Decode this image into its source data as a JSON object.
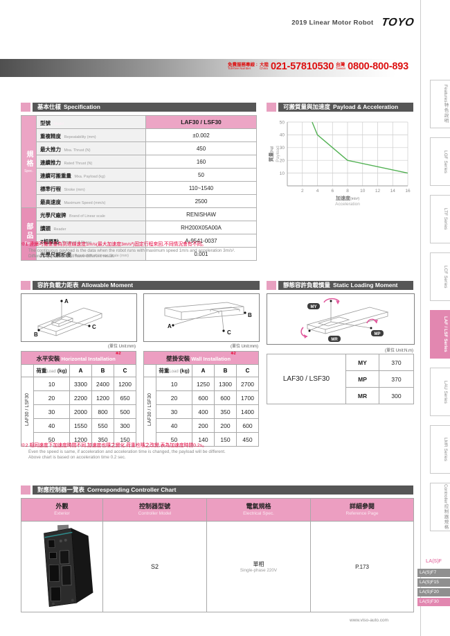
{
  "colors": {
    "accent_pink": "#e287b0",
    "table_header_pink": "#ec9ec1",
    "section_bar_gray": "#565656",
    "chart_line_green": "#52b153",
    "note_red": "#e6003c",
    "phone_red": "#dd1111"
  },
  "header": {
    "title": "2019  Linear Motor Robot",
    "logo": "TOYO",
    "hotline_zh": "免費服務專線 :",
    "hotline_en": "Toll-free Number",
    "region1_zh": "大陸",
    "region1_en": "China",
    "phone1": "021-57810530",
    "region2_zh": "台灣",
    "region2_en": "Taiwan",
    "phone2": "0800-800-893"
  },
  "sidebar": {
    "tabs": [
      {
        "zh": "特色說明",
        "en": "Features"
      },
      {
        "zh": "",
        "en": "LGF Series"
      },
      {
        "zh": "",
        "en": "LTF Series"
      },
      {
        "zh": "",
        "en": "LCF Series"
      },
      {
        "zh": "",
        "en": "LAF / LSF Series"
      },
      {
        "zh": "",
        "en": "LAU Series"
      },
      {
        "zh": "",
        "en": "LMR Series"
      },
      {
        "zh": "控制器規格",
        "en": "Controller"
      }
    ],
    "active_tab": "LAF / LSF Series",
    "series_label": "LA(S)F",
    "sub_tabs": [
      "LA(S)F7",
      "LA(S)F15",
      "LA(S)F20",
      "LA(S)F30"
    ],
    "active_sub_tab": "LA(S)F30"
  },
  "spec": {
    "title_zh": "基本仕樣",
    "title_en": "Specification",
    "group1_zh": "規格",
    "group1_en": "Spec.",
    "group2_zh": "部品",
    "group2_en": "Parts",
    "model_label_zh": "型號",
    "model_label_en": "Model",
    "model_value": "LAF30 / LSF30",
    "rows": [
      {
        "zh": "重複精度",
        "en": "Repeatability (mm)",
        "value": "±0.002"
      },
      {
        "zh": "最大推力",
        "en": "Mxa. Thrust (N)",
        "value": "450"
      },
      {
        "zh": "連續推力",
        "en": "Rated Thrust (N)",
        "value": "160"
      },
      {
        "zh": "連續可搬重量",
        "en": "Mxa. Payload (kg)",
        "value": "50"
      },
      {
        "zh": "標準行程",
        "en": "Stroke (mm)",
        "value": "110~1540"
      },
      {
        "zh": "最高速度",
        "en": "Maximum Speed (mm/s)",
        "value": "2500"
      },
      {
        "zh": "光學尺廠牌",
        "en": "Brand of Linear scale",
        "value": "RENISHAW"
      },
      {
        "zh": "讀頭",
        "en": "Reader",
        "value": "RH200X05A00A"
      },
      {
        "zh": "Z相原點",
        "en": "Origin of Z Phase",
        "value": "A-9541-0037"
      },
      {
        "zh": "光學尺解析度",
        "en": "Resolution of Linear Scale (mm)",
        "value": "0.001"
      }
    ],
    "note_zh": "※1 連續可搬重量為到達線速度1m/s(最大加速度3m/s²)固定行程來回,不同情況會有不同。",
    "note_en1": "The continuous payload is the data when the robot runs with maximum speed 1m/s and acceleration 3m/s².",
    "note_en2": "Different application will have different result."
  },
  "payload_section": {
    "title_zh": "可搬質量與加速度",
    "title_en": "Payload & Acceleration"
  },
  "chart_data": {
    "type": "line",
    "title": "可搬質量與加速度 Payload & Acceleration",
    "xlabel": "加速度",
    "xlabel_unit": "(m/s²)",
    "xlabel_en": "Acceleration",
    "ylabel": "質量",
    "ylabel_unit": "(kg)",
    "ylabel_en": "Payload",
    "xlim": [
      0,
      16
    ],
    "ylim": [
      0,
      50
    ],
    "xticks": [
      2,
      4,
      6,
      8,
      10,
      12,
      14,
      16
    ],
    "yticks": [
      10,
      20,
      30,
      40,
      50
    ],
    "grid": true,
    "legend": false,
    "series": [
      {
        "name": "payload_vs_acceleration",
        "color": "#52b153",
        "points": [
          [
            3.3,
            50
          ],
          [
            4,
            40
          ],
          [
            8,
            20
          ],
          [
            16,
            10
          ]
        ]
      }
    ]
  },
  "allowable": {
    "title_zh": "容許負載力距表",
    "title_en": "Allowable Moment",
    "unit_mm": "(單位  Unit:mm)",
    "labels": [
      "A",
      "B",
      "C"
    ],
    "load_zh": "荷重",
    "load_en": "Load",
    "load_unit": "(kg)",
    "side_label": "LAF30 / LSF30",
    "note_ref": "※2",
    "horizontal": {
      "title_zh": "水平安裝",
      "title_en": "Horizontal Installation",
      "cols": [
        "A",
        "B",
        "C"
      ],
      "rows": [
        [
          "10",
          "3300",
          "2400",
          "1200"
        ],
        [
          "20",
          "2200",
          "1200",
          "650"
        ],
        [
          "30",
          "2000",
          "800",
          "500"
        ],
        [
          "40",
          "1550",
          "550",
          "300"
        ],
        [
          "50",
          "1200",
          "350",
          "150"
        ]
      ]
    },
    "wall": {
      "title_zh": "壁掛安裝",
      "title_en": "Wall Installation",
      "cols": [
        "A",
        "B",
        "C"
      ],
      "rows": [
        [
          "10",
          "1250",
          "1300",
          "2700"
        ],
        [
          "20",
          "600",
          "600",
          "1700"
        ],
        [
          "30",
          "400",
          "350",
          "1400"
        ],
        [
          "40",
          "200",
          "200",
          "600"
        ],
        [
          "50",
          "140",
          "150",
          "450"
        ]
      ]
    },
    "note_zh": "※2 相同速度下加速度時間不同,加速度也隨之變化,荷重也隨之改變,表為加速度時間0.2s。",
    "note_en1": "Even the speed is same, if acceleration and acceleration time is changed, the payload will be different.",
    "note_en2": "Above chart is based on acceleration time 0.2 sec."
  },
  "static_moment": {
    "title_zh": "靜態容許負載慣量",
    "title_en": "Static Loading Moment",
    "unit": "(單位  Unit:N.m)",
    "model": "LAF30 / LSF30",
    "badges": [
      "MY",
      "MP",
      "MR"
    ],
    "rows": [
      {
        "key": "MY",
        "value": "370"
      },
      {
        "key": "MP",
        "value": "370"
      },
      {
        "key": "MR",
        "value": "300"
      }
    ]
  },
  "controller": {
    "title_zh": "對應控制器一覽表",
    "title_en": "Corresponding Controller Chart",
    "cols": [
      {
        "zh": "外觀",
        "en": "Exterior"
      },
      {
        "zh": "控制器型號",
        "en": "Controller Model"
      },
      {
        "zh": "電氣規格",
        "en": "Electrical Spec."
      },
      {
        "zh": "詳細參閱",
        "en": "Reference Page"
      }
    ],
    "model": "S2",
    "electrical_zh": "單相",
    "electrical_en": "Single-phase 220V",
    "page": "P.173"
  },
  "footer": {
    "website": "www.viso-auto.com"
  }
}
